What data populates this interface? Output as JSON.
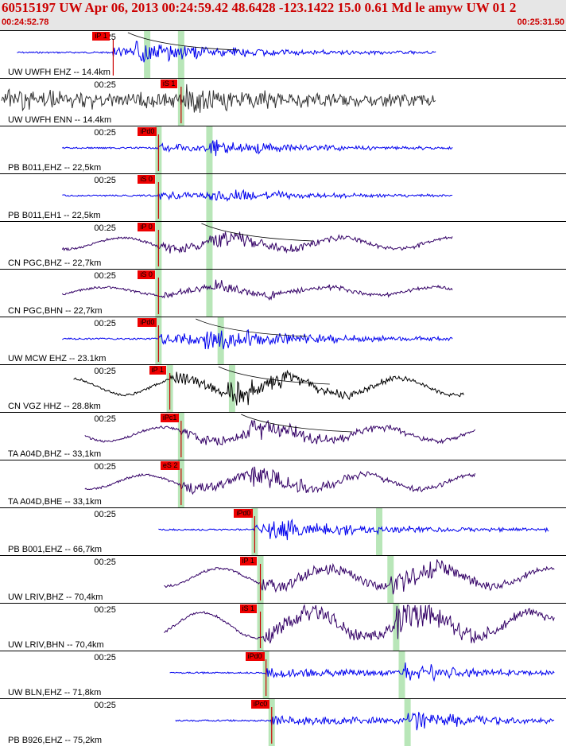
{
  "header": {
    "title": "60515197 UW Apr 06, 2013 00:24:59.42    48.6428 -123.1422 15.0 0.61 Md le amyw UW 01   2",
    "start_time": "00:24:52.78",
    "end_time": "00:25:31.50"
  },
  "tick_label": "00:25",
  "traces": [
    {
      "label": "UW UWFH EHZ -- 14.4km",
      "color": "#0000ee",
      "picks": [
        {
          "text": "iP 1"
        }
      ],
      "kind": "hf",
      "amp": 10,
      "onset": 0.2,
      "burst": 0.24,
      "end": 0.77,
      "tick": 0.2,
      "greens": [
        0.26,
        0.32
      ],
      "decay": true
    },
    {
      "label": "UW UWFH ENN -- 14.4km",
      "color": "#333333",
      "picks": [
        {
          "text": "iS 1"
        }
      ],
      "kind": "noise",
      "amp": 12,
      "onset": 0.0,
      "burst": 0.32,
      "end": 0.77,
      "tick": 0.2,
      "greens": [
        0.32
      ],
      "decay": false
    },
    {
      "label": "PB B011,EHZ -- 22,5km",
      "color": "#0000ee",
      "picks": [
        {
          "text": "iPd0"
        }
      ],
      "kind": "hf",
      "amp": 8,
      "onset": 0.28,
      "burst": 0.37,
      "end": 0.8,
      "tick": 0.2,
      "greens": [
        0.28,
        0.37
      ],
      "decay": false
    },
    {
      "label": "PB B011,EH1 -- 22,5km",
      "color": "#0000ee",
      "picks": [
        {
          "text": "iS 0"
        }
      ],
      "kind": "hf",
      "amp": 7,
      "onset": 0.28,
      "burst": 0.37,
      "end": 0.8,
      "tick": 0.2,
      "greens": [
        0.28,
        0.37
      ],
      "decay": false
    },
    {
      "label": "CN PGC,BHZ -- 22,7km",
      "color": "#330066",
      "picks": [
        {
          "text": "iP 0"
        }
      ],
      "kind": "lf",
      "amp": 9,
      "onset": 0.28,
      "burst": 0.37,
      "end": 0.8,
      "tick": 0.2,
      "greens": [
        0.28,
        0.37
      ],
      "decay": true
    },
    {
      "label": "CN PGC,BHN -- 22,7km",
      "color": "#330066",
      "picks": [
        {
          "text": "iS 0"
        }
      ],
      "kind": "lf",
      "amp": 6,
      "onset": 0.28,
      "burst": 0.38,
      "end": 0.8,
      "tick": 0.2,
      "greens": [
        0.28,
        0.37
      ],
      "decay": false
    },
    {
      "label": "UW MCW EHZ -- 23.1km",
      "color": "#0000ee",
      "picks": [
        {
          "text": "iPd0"
        }
      ],
      "kind": "hf",
      "amp": 12,
      "onset": 0.28,
      "burst": 0.36,
      "end": 0.8,
      "tick": 0.2,
      "greens": [
        0.28,
        0.39
      ],
      "decay": true
    },
    {
      "label": "CN VGZ HHZ -- 28.8km",
      "color": "#000000",
      "picks": [
        {
          "text": "iP 1"
        }
      ],
      "kind": "lf",
      "amp": 13,
      "onset": 0.3,
      "burst": 0.4,
      "end": 0.82,
      "tick": 0.2,
      "greens": [
        0.3,
        0.41
      ],
      "decay": true
    },
    {
      "label": "TA A04D,BHZ -- 33,1km",
      "color": "#330066",
      "picks": [
        {
          "text": "iPc1"
        }
      ],
      "kind": "lf",
      "amp": 11,
      "onset": 0.32,
      "burst": 0.44,
      "end": 0.84,
      "tick": 0.2,
      "greens": [
        0.32
      ],
      "decay": true
    },
    {
      "label": "TA A04D,BHE -- 33,1km",
      "color": "#330066",
      "picks": [
        {
          "text": "eS 2"
        }
      ],
      "kind": "lf",
      "amp": 11,
      "onset": 0.32,
      "burst": 0.44,
      "end": 0.84,
      "tick": 0.2,
      "greens": [
        0.32
      ],
      "decay": false
    },
    {
      "label": "PB B001,EHZ -- 66,7km",
      "color": "#0000ee",
      "picks": [
        {
          "text": "iPd0"
        }
      ],
      "kind": "hf",
      "amp": 10,
      "onset": 0.45,
      "burst": 0.47,
      "end": 0.97,
      "tick": 0.2,
      "greens": [
        0.45,
        0.67
      ],
      "decay": false
    },
    {
      "label": "UW LRIV,BHZ -- 70,4km",
      "color": "#330066",
      "picks": [
        {
          "text": "iP 1"
        }
      ],
      "kind": "lf",
      "amp": 14,
      "onset": 0.46,
      "burst": 0.69,
      "end": 0.98,
      "tick": 0.2,
      "greens": [
        0.46,
        0.69
      ],
      "decay": false
    },
    {
      "label": "UW LRIV,BHN -- 70,4km",
      "color": "#330066",
      "picks": [
        {
          "text": "iS 1"
        }
      ],
      "kind": "lf",
      "amp": 20,
      "onset": 0.46,
      "burst": 0.7,
      "end": 0.98,
      "tick": 0.2,
      "greens": [
        0.46,
        0.7
      ],
      "decay": false
    },
    {
      "label": "UW BLN,EHZ -- 71,8km",
      "color": "#0000ee",
      "picks": [
        {
          "text": "iPd0"
        }
      ],
      "kind": "hf",
      "amp": 10,
      "onset": 0.47,
      "burst": 0.71,
      "end": 0.98,
      "tick": 0.2,
      "greens": [
        0.47,
        0.71
      ],
      "decay": false
    },
    {
      "label": "PB B926,EHZ -- 75,2km",
      "color": "#0000ee",
      "picks": [
        {
          "text": "iPc0"
        }
      ],
      "kind": "hf",
      "amp": 10,
      "onset": 0.48,
      "burst": 0.72,
      "end": 0.98,
      "tick": 0.2,
      "greens": [
        0.48,
        0.72
      ],
      "decay": false
    }
  ]
}
